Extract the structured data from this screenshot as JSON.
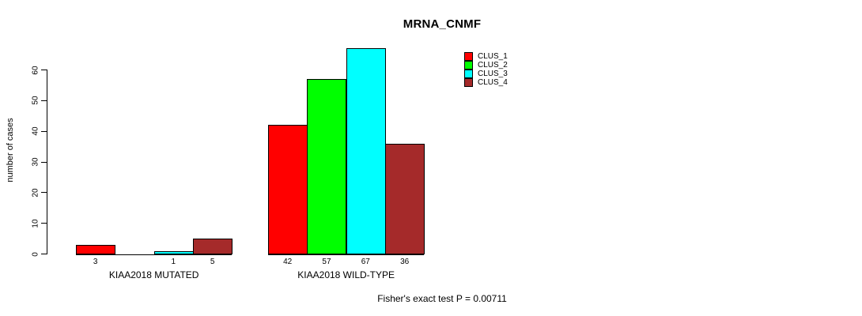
{
  "title": "MRNA_CNMF",
  "y_axis": {
    "label": "number of cases",
    "tick_labels": [
      "0",
      "10",
      "20",
      "30",
      "40",
      "50",
      "60"
    ]
  },
  "footer": "Fisher's exact test P = 0.00711",
  "legend": {
    "items": [
      {
        "label": "CLUS_1",
        "color": "#FF0000"
      },
      {
        "label": "CLUS_2",
        "color": "#00FF00"
      },
      {
        "label": "CLUS_3",
        "color": "#00FFFF"
      },
      {
        "label": "CLUS_4",
        "color": "#A52A2A"
      }
    ]
  },
  "chart_data": {
    "type": "bar",
    "title": "MRNA_CNMF",
    "xlabel": "",
    "ylabel": "number of cases",
    "ylim": [
      0,
      67
    ],
    "yticks": [
      0,
      10,
      20,
      30,
      40,
      50,
      60
    ],
    "grid": false,
    "legend_position": "top-right",
    "categories": [
      "KIAA2018 MUTATED",
      "KIAA2018 WILD-TYPE"
    ],
    "series": [
      {
        "name": "CLUS_1",
        "color": "#FF0000",
        "values": [
          3,
          42
        ]
      },
      {
        "name": "CLUS_2",
        "color": "#00FF00",
        "values": [
          0,
          57
        ]
      },
      {
        "name": "CLUS_3",
        "color": "#00FFFF",
        "values": [
          1,
          67
        ]
      },
      {
        "name": "CLUS_4",
        "color": "#A52A2A",
        "values": [
          5,
          36
        ]
      }
    ],
    "bar_value_labels": [
      [
        "3",
        "",
        "1",
        "5"
      ],
      [
        "42",
        "57",
        "67",
        "36"
      ]
    ],
    "annotation": "Fisher's exact test P = 0.00711"
  }
}
